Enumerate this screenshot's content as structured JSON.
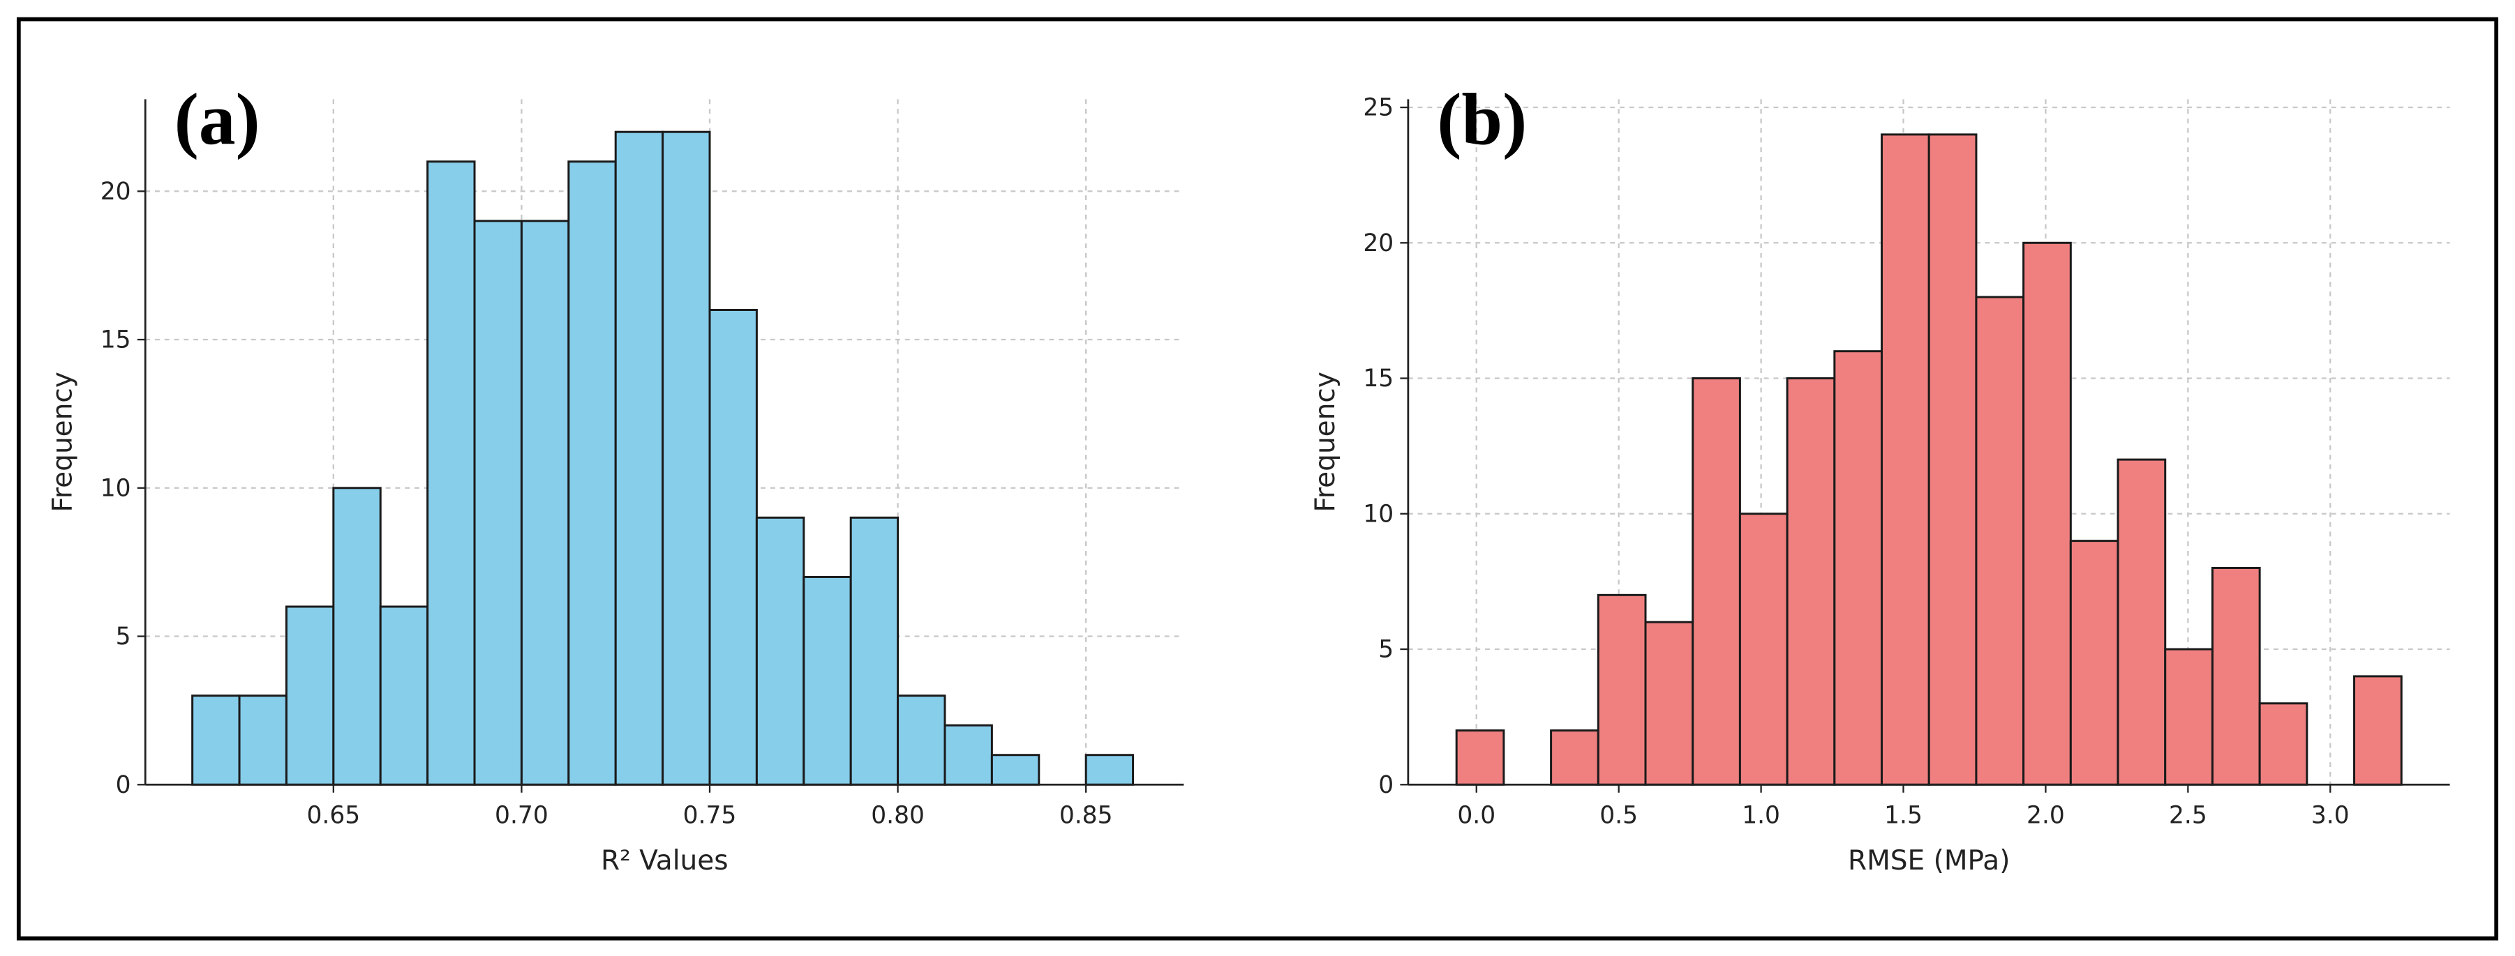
{
  "chart_data": [
    {
      "type": "histogram",
      "label": "(a)",
      "xlabel": "R² Values",
      "ylabel": "Frequency",
      "bins": [
        0.6125,
        0.625,
        0.6375,
        0.65,
        0.6625,
        0.675,
        0.6875,
        0.7,
        0.7125,
        0.725,
        0.7375,
        0.75,
        0.7625,
        0.775,
        0.7875,
        0.8,
        0.8125,
        0.825,
        0.8375,
        0.85,
        0.8625
      ],
      "values": [
        3,
        3,
        6,
        10,
        6,
        21,
        19,
        19,
        21,
        22,
        22,
        16,
        9,
        7,
        9,
        3,
        2,
        1,
        0,
        1
      ],
      "color": "#87ceeb",
      "edgecolor": "#1a1a1a",
      "grid": true,
      "xlim": [
        0.6,
        0.876
      ],
      "xticks": [
        0.65,
        {
          "value": 0.7,
          "label": "0.70"
        },
        0.75,
        {
          "value": 0.8,
          "label": "0.80"
        },
        0.85
      ],
      "ylim": [
        0,
        23.1
      ],
      "yticks": [
        0,
        5,
        10,
        15,
        20
      ]
    },
    {
      "type": "histogram",
      "label": "(b)",
      "xlabel": "RMSE (MPa)",
      "ylabel": "Frequency",
      "bins": [
        -0.07,
        0.096,
        0.262,
        0.428,
        0.594,
        0.76,
        0.926,
        1.092,
        1.258,
        1.424,
        1.59,
        1.756,
        1.922,
        2.088,
        2.254,
        2.42,
        2.586,
        2.752,
        2.918,
        3.084,
        3.25
      ],
      "values": [
        2,
        0,
        2,
        7,
        6,
        15,
        10,
        15,
        16,
        24,
        24,
        18,
        20,
        9,
        12,
        5,
        8,
        3,
        0,
        4
      ],
      "color": "#f08080",
      "edgecolor": "#1a1a1a",
      "grid": true,
      "xlim": [
        -0.24,
        3.42
      ],
      "xticks": [
        {
          "value": 0,
          "label": "0.0"
        },
        0.5,
        {
          "value": 1,
          "label": "1.0"
        },
        1.5,
        {
          "value": 2,
          "label": "2.0"
        },
        2.5,
        {
          "value": 3,
          "label": "3.0"
        }
      ],
      "ylim": [
        0,
        25.3
      ],
      "yticks": [
        0,
        5,
        10,
        15,
        20,
        25
      ]
    }
  ]
}
